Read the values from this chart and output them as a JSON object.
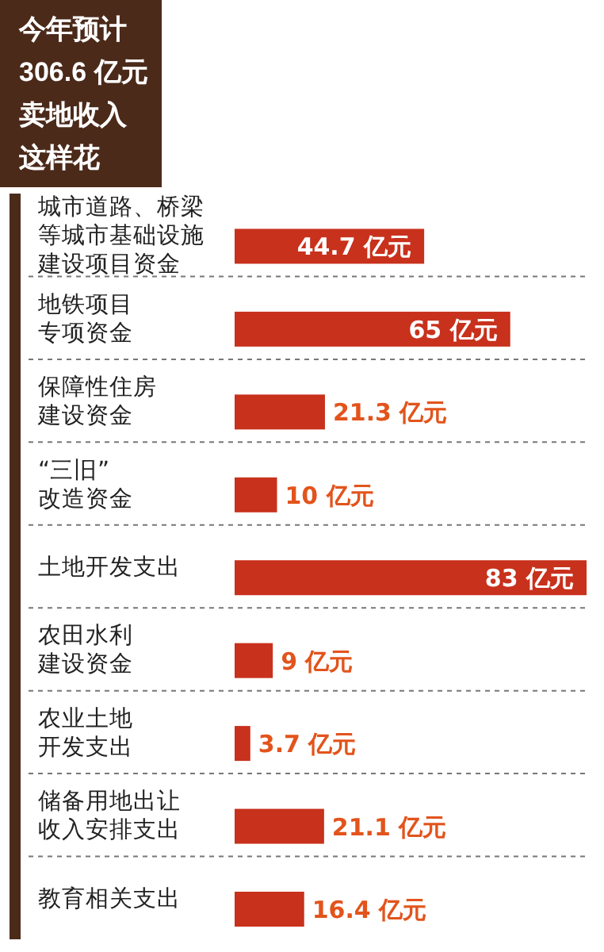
{
  "chart_data": {
    "type": "bar",
    "orientation": "horizontal",
    "title": "今年预计306.6 亿元卖地收入这样花",
    "categories": [
      "城市道路、桥梁等城市基础设施建设项目资金",
      "地铁项目专项资金",
      "保障性住房建设资金",
      "“三旧”改造资金",
      "土地开发支出",
      "农田水利建设资金",
      "农业土地开发支出",
      "储备用地出让收入安排支出",
      "教育相关支出"
    ],
    "values": [
      44.7,
      65,
      21.3,
      10,
      83,
      9,
      3.7,
      21.1,
      16.4
    ],
    "value_labels": [
      "44.7 亿元",
      "65 亿元",
      "21.3 亿元",
      "10 亿元",
      "83 亿元",
      "9 亿元",
      "3.7 亿元",
      "21.1 亿元",
      "16.4 亿元"
    ],
    "color": "#c8311c"
  }
}
